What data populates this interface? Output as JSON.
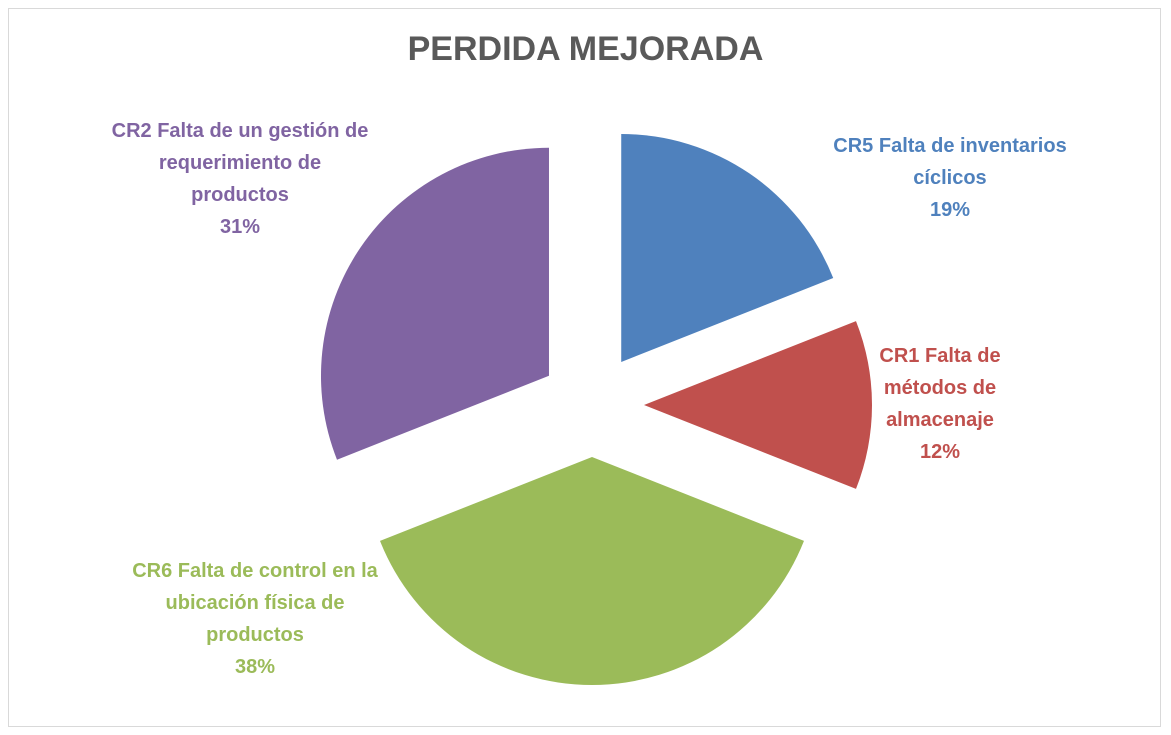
{
  "chart_data": {
    "type": "pie",
    "title": "PERDIDA MEJORADA",
    "categories": [
      "CR5 Falta de inventarios cíclicos",
      "CR1 Falta de métodos de almacenaje",
      "CR6 Falta de control en la ubicación física de productos",
      "CR2 Falta de un gestión de requerimiento de productos"
    ],
    "values": [
      19,
      12,
      38,
      31
    ],
    "value_labels": [
      "19%",
      "12%",
      "38%",
      "31%"
    ],
    "colors": [
      "#4f81bd",
      "#c0504d",
      "#9bbb59",
      "#8064a2"
    ]
  }
}
